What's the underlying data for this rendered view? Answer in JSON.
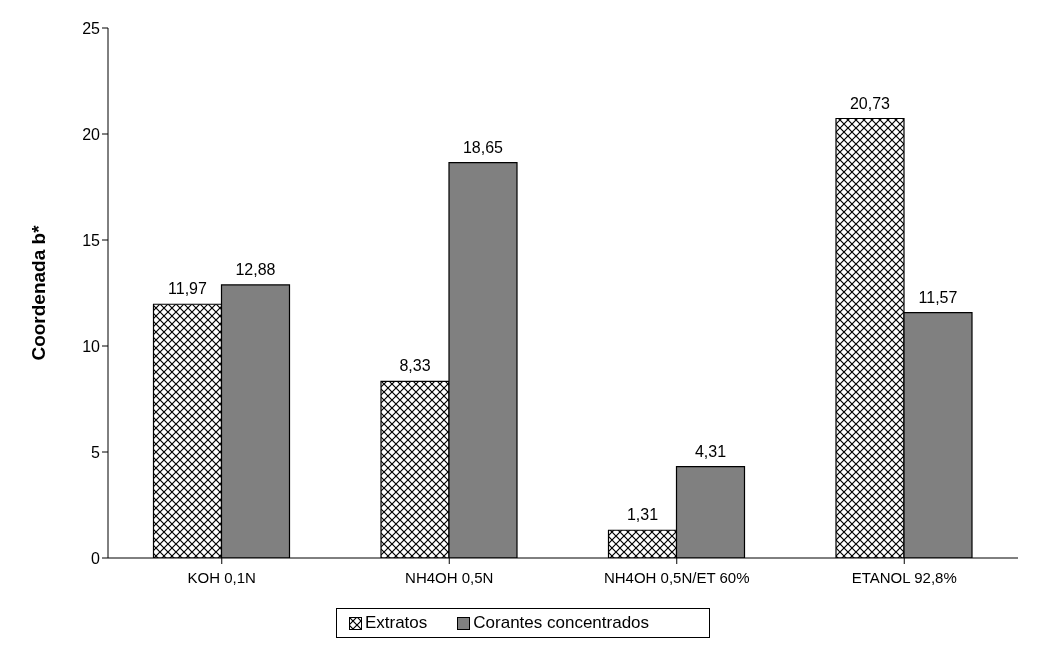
{
  "chart_data": {
    "type": "bar",
    "ylabel": "Coordenada b*",
    "categories": [
      "KOH 0,1N",
      "NH4OH 0,5N",
      "NH4OH 0,5N/ET 60%",
      "ETANOL 92,8%"
    ],
    "series": [
      {
        "name": "Extratos",
        "color": "#000000",
        "values": [
          11.97,
          8.33,
          1.31,
          20.73
        ],
        "value_labels": [
          "11,97",
          "8,33",
          "1,31",
          "20,73"
        ]
      },
      {
        "name": "Corantes concentrados",
        "color": "#808080",
        "values": [
          12.88,
          18.65,
          4.31,
          11.57
        ],
        "value_labels": [
          "12,88",
          "18,65",
          "4,31",
          "11,57"
        ]
      }
    ],
    "ylim": [
      0,
      25
    ],
    "yticks": [
      0,
      5,
      10,
      15,
      20,
      25
    ],
    "grid": false,
    "legend": "bottom"
  }
}
